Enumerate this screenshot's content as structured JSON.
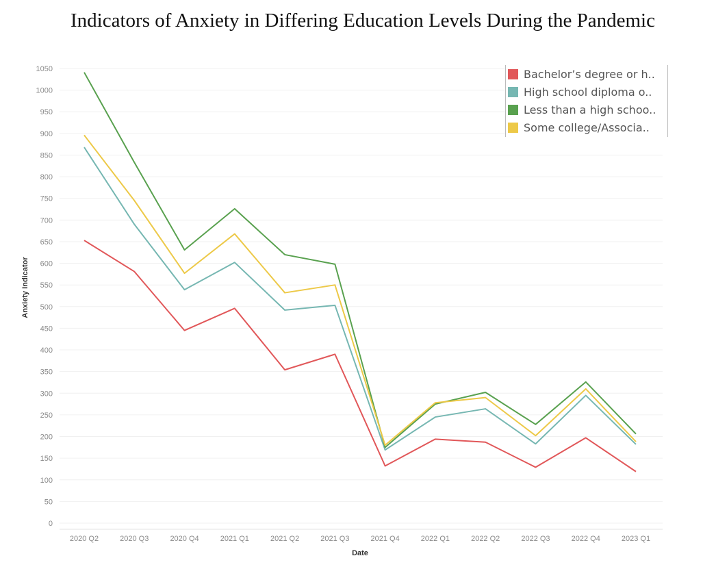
{
  "title": "Indicators of Anxiety in Differing Education Levels During the Pandemic",
  "chart_data": {
    "type": "line",
    "xlabel": "Date",
    "ylabel": "Anxiety Indicator",
    "categories": [
      "2020 Q2",
      "2020 Q3",
      "2020 Q4",
      "2021 Q1",
      "2021 Q2",
      "2021 Q3",
      "2021 Q4",
      "2022 Q1",
      "2022 Q2",
      "2022 Q3",
      "2022 Q4",
      "2023 Q1"
    ],
    "ylim": [
      0,
      1050
    ],
    "yticks": [
      0,
      50,
      100,
      150,
      200,
      250,
      300,
      350,
      400,
      450,
      500,
      550,
      600,
      650,
      700,
      750,
      800,
      850,
      900,
      950,
      1000,
      1050
    ],
    "grid": true,
    "legend_position": "top-right",
    "series": [
      {
        "name": "Bachelor’s degree or h..",
        "color": "#e15759",
        "values": [
          653,
          581,
          445,
          496,
          354,
          390,
          132,
          194,
          187,
          129,
          197,
          119
        ]
      },
      {
        "name": "High school diploma o..",
        "color": "#76b7b2",
        "values": [
          868,
          690,
          539,
          602,
          492,
          503,
          169,
          245,
          264,
          183,
          295,
          182
        ]
      },
      {
        "name": "Less than a high schoo..",
        "color": "#59a14f",
        "values": [
          1041,
          833,
          631,
          726,
          620,
          598,
          175,
          275,
          302,
          228,
          326,
          206
        ]
      },
      {
        "name": "Some college/Associa..",
        "color": "#edc948",
        "values": [
          896,
          745,
          577,
          668,
          532,
          550,
          180,
          278,
          290,
          202,
          310,
          188
        ]
      }
    ]
  }
}
